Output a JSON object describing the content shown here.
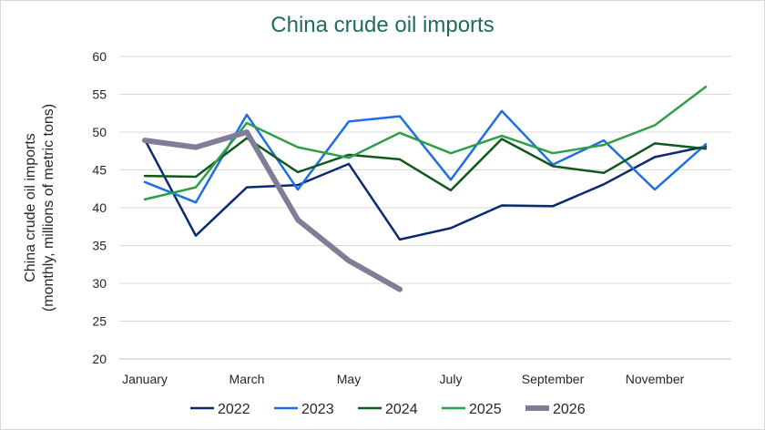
{
  "chart_data": {
    "type": "line",
    "title": "China crude oil imports",
    "xlabel": "",
    "ylabel_lines": [
      "China crude oil imports",
      "(monthly, millions of metric tons)"
    ],
    "ylim": [
      20,
      60
    ],
    "yticks": [
      20,
      25,
      30,
      35,
      40,
      45,
      50,
      55,
      60
    ],
    "categories": [
      "January",
      "February",
      "March",
      "April",
      "May",
      "June",
      "July",
      "August",
      "September",
      "October",
      "November",
      "December"
    ],
    "x_tick_labels": [
      "January",
      "",
      "March",
      "",
      "May",
      "",
      "July",
      "",
      "September",
      "",
      "November",
      ""
    ],
    "grid": "horizontal",
    "legend_position": "bottom",
    "series": [
      {
        "name": "2022",
        "color": "#0b2a6f",
        "width": 2.5,
        "values": [
          49.0,
          36.3,
          42.7,
          43.0,
          45.8,
          35.8,
          37.3,
          40.3,
          40.2,
          43.1,
          46.7,
          48.1
        ]
      },
      {
        "name": "2023",
        "color": "#1e6fe0",
        "width": 2.5,
        "values": [
          43.4,
          40.7,
          52.3,
          42.4,
          51.4,
          52.1,
          43.7,
          52.8,
          45.7,
          48.9,
          42.4,
          48.4
        ]
      },
      {
        "name": "2024",
        "color": "#0f5a1a",
        "width": 2.5,
        "values": [
          44.2,
          44.1,
          49.2,
          44.7,
          47.0,
          46.4,
          42.3,
          49.1,
          45.5,
          44.6,
          48.5,
          47.8
        ]
      },
      {
        "name": "2025",
        "color": "#2f9e47",
        "width": 2.5,
        "values": [
          41.1,
          42.7,
          51.2,
          48.0,
          46.6,
          49.9,
          47.2,
          49.5,
          47.2,
          48.3,
          50.9,
          56.0
        ]
      },
      {
        "name": "2026",
        "color": "#7f7d97",
        "width": 6,
        "values": [
          48.9,
          48.0,
          50.0,
          38.4,
          33.0,
          29.2,
          null,
          null,
          null,
          null,
          null,
          null
        ]
      }
    ]
  }
}
